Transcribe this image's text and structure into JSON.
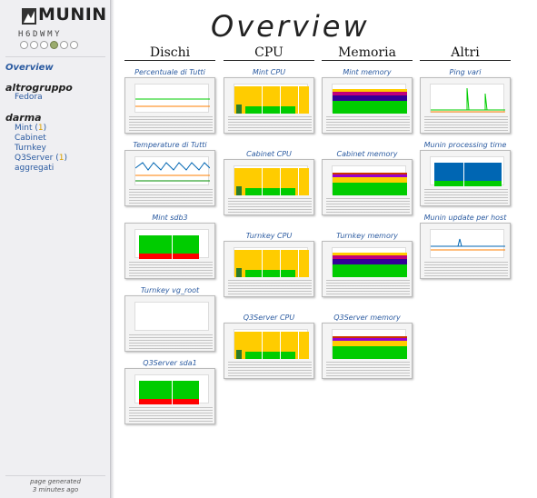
{
  "header": {
    "logo_text": "MUNIN",
    "title": "Overview"
  },
  "periods": {
    "label": "H6DWMY",
    "count": 6,
    "active_index": 3
  },
  "sidebar": {
    "overview_label": "Overview",
    "groups": [
      {
        "title": "altrogruppo",
        "items": [
          {
            "label": "Fedora",
            "warnings": ""
          }
        ]
      },
      {
        "title": "darma",
        "items": [
          {
            "label": "Mint",
            "warnings": "1"
          },
          {
            "label": "Cabinet",
            "warnings": ""
          },
          {
            "label": "Turnkey",
            "warnings": ""
          },
          {
            "label": "Q3Server",
            "warnings": "1"
          },
          {
            "label": "aggregati",
            "warnings": ""
          }
        ]
      }
    ],
    "generated": [
      "page generated",
      "3 minutes ago"
    ]
  },
  "columns": [
    {
      "title": "Dischi",
      "graphs": [
        "Percentuale di Tutti",
        "Temperature di Tutti",
        "Mint sdb3",
        "Turnkey vg_root",
        "Q3Server sda1"
      ],
      "kinds": [
        "flat",
        "temp",
        "disk",
        "empty",
        "disk"
      ]
    },
    {
      "title": "CPU",
      "graphs": [
        "Mint CPU",
        "Cabinet CPU",
        "Turnkey CPU",
        "Q3Server CPU"
      ],
      "kinds": [
        "cpu",
        "cpu",
        "cpu",
        "cpu"
      ]
    },
    {
      "title": "Memoria",
      "graphs": [
        "Mint memory",
        "Cabinet memory",
        "Turnkey memory",
        "Q3Server memory"
      ],
      "kinds": [
        "mem",
        "mem2",
        "mem",
        "mem2"
      ]
    },
    {
      "title": "Altri",
      "graphs": [
        "Ping vari",
        "Munin processing time",
        "Munin update per host"
      ],
      "kinds": [
        "ping",
        "proc",
        "upd"
      ]
    }
  ],
  "colors": {
    "link": "#2a5aa0",
    "warning": "#d8a000",
    "cpu": "#ffcc00",
    "green": "#00cc00",
    "red": "#ff0000",
    "blue": "#0066b3"
  }
}
